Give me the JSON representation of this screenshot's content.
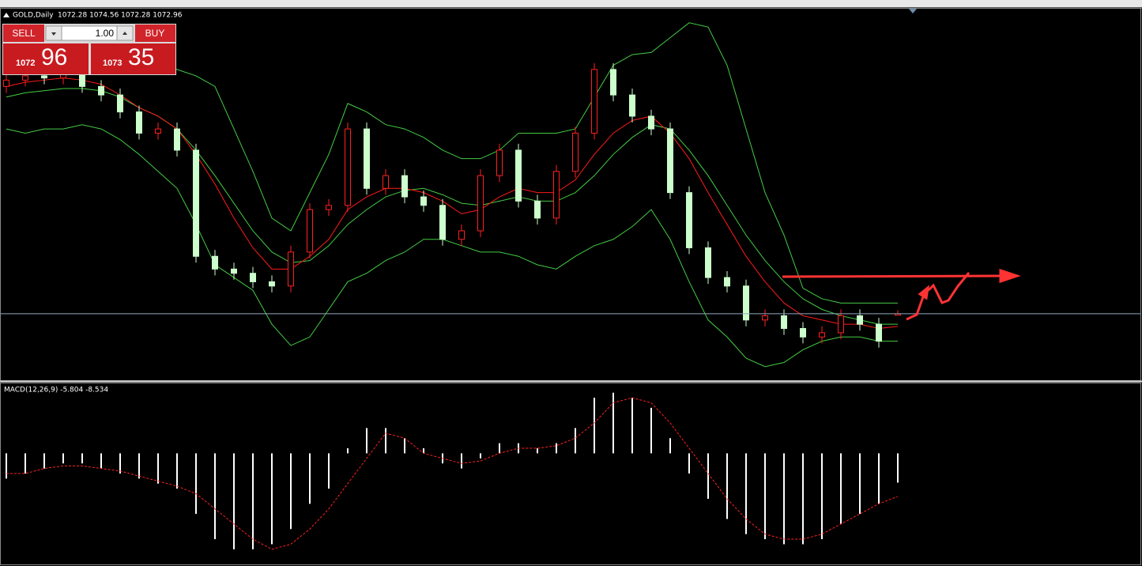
{
  "header": {
    "symbol": "GOLD,Daily",
    "ohlc": "1072.28 1074.56 1072.28 1072.96"
  },
  "trade_panel": {
    "sell": "SELL",
    "buy": "BUY",
    "volume": "1.00",
    "bid_big": "1072",
    "bid_small": "96",
    "ask_big": "1073",
    "ask_small": "35"
  },
  "chart_data": [
    {
      "type": "candlestick",
      "ylim": [
        1042,
        1217
      ],
      "up_color": "#ff2020",
      "down_color": "#ccffcc",
      "band_color": "#44cc44",
      "ma_color": "#ff1a1a",
      "bid_line_color": "#8fa9bf",
      "open": [
        1180,
        1183,
        1185,
        1184,
        1186,
        1180,
        1176,
        1168,
        1158,
        1160,
        1150,
        1100,
        1094,
        1092,
        1088,
        1086,
        1102,
        1122,
        1124,
        1160,
        1132,
        1138,
        1128,
        1124,
        1108,
        1112,
        1138,
        1150,
        1126,
        1118,
        1140,
        1158,
        1188,
        1176,
        1166,
        1160,
        1130,
        1104,
        1090,
        1086,
        1070,
        1072,
        1066,
        1062,
        1064,
        1072,
        1068,
        1072.28
      ],
      "high": [
        1186,
        1188,
        1188,
        1189,
        1189,
        1183,
        1179,
        1171,
        1163,
        1163,
        1153,
        1103,
        1097,
        1095,
        1091,
        1105,
        1125,
        1127,
        1163,
        1163,
        1141,
        1141,
        1131,
        1127,
        1115,
        1141,
        1153,
        1153,
        1129,
        1143,
        1161,
        1191,
        1191,
        1179,
        1169,
        1163,
        1133,
        1107,
        1093,
        1089,
        1075,
        1075,
        1069,
        1067,
        1075,
        1075,
        1071,
        1074.56
      ],
      "low": [
        1177,
        1180,
        1181,
        1181,
        1177,
        1173,
        1165,
        1155,
        1155,
        1147,
        1097,
        1091,
        1089,
        1085,
        1083,
        1083,
        1099,
        1119,
        1121,
        1129,
        1129,
        1125,
        1121,
        1105,
        1105,
        1109,
        1135,
        1123,
        1115,
        1115,
        1137,
        1155,
        1173,
        1163,
        1157,
        1127,
        1101,
        1087,
        1083,
        1067,
        1067,
        1063,
        1059,
        1059,
        1061,
        1065,
        1057,
        1072.28
      ],
      "close": [
        1183,
        1185,
        1184,
        1186,
        1180,
        1176,
        1168,
        1158,
        1160,
        1150,
        1100,
        1094,
        1092,
        1088,
        1086,
        1102,
        1122,
        1124,
        1160,
        1132,
        1138,
        1128,
        1124,
        1108,
        1112,
        1138,
        1150,
        1126,
        1118,
        1140,
        1158,
        1188,
        1176,
        1166,
        1160,
        1130,
        1104,
        1090,
        1086,
        1070,
        1072,
        1066,
        1062,
        1064,
        1072,
        1068,
        1060,
        1072.96
      ],
      "upper": [
        1190,
        1196,
        1197,
        1198,
        1197,
        1196,
        1195,
        1193,
        1190,
        1188,
        1185,
        1180,
        1160,
        1140,
        1118,
        1112,
        1130,
        1148,
        1172,
        1168,
        1162,
        1160,
        1156,
        1150,
        1146,
        1146,
        1150,
        1158,
        1158,
        1158,
        1160,
        1175,
        1190,
        1195,
        1196,
        1203,
        1210,
        1208,
        1190,
        1160,
        1130,
        1110,
        1085,
        1080,
        1078,
        1078,
        1078,
        1078
      ],
      "middle": [
        1175,
        1177,
        1178,
        1179,
        1179,
        1178,
        1175,
        1170,
        1166,
        1160,
        1150,
        1138,
        1125,
        1112,
        1102,
        1097,
        1098,
        1105,
        1115,
        1122,
        1128,
        1131,
        1132,
        1129,
        1125,
        1124,
        1126,
        1128,
        1126,
        1126,
        1130,
        1138,
        1148,
        1156,
        1162,
        1160,
        1150,
        1138,
        1124,
        1110,
        1098,
        1088,
        1080,
        1075,
        1072,
        1070,
        1068,
        1068
      ],
      "lower": [
        1160,
        1158,
        1160,
        1160,
        1162,
        1160,
        1155,
        1148,
        1140,
        1132,
        1115,
        1096,
        1090,
        1084,
        1068,
        1058,
        1062,
        1075,
        1088,
        1092,
        1098,
        1102,
        1108,
        1108,
        1105,
        1102,
        1102,
        1100,
        1096,
        1094,
        1100,
        1105,
        1108,
        1114,
        1122,
        1108,
        1088,
        1070,
        1062,
        1052,
        1048,
        1050,
        1056,
        1060,
        1062,
        1062,
        1060,
        1060
      ],
      "ma": [
        1180,
        1182,
        1183,
        1184,
        1183,
        1181,
        1176,
        1170,
        1166,
        1160,
        1148,
        1134,
        1118,
        1104,
        1094,
        1094,
        1100,
        1108,
        1122,
        1128,
        1132,
        1132,
        1130,
        1126,
        1120,
        1122,
        1128,
        1132,
        1130,
        1130,
        1136,
        1148,
        1158,
        1164,
        1166,
        1158,
        1146,
        1130,
        1115,
        1100,
        1088,
        1078,
        1072,
        1070,
        1068,
        1068,
        1066,
        1067
      ]
    },
    {
      "type": "macd",
      "title": "MACD(12,26,9) -5.804 -8.534",
      "ylim": [
        -22,
        14
      ],
      "histogram_color": "#ffffff",
      "signal_color": "#ff2020",
      "histogram": [
        -5,
        -4,
        -3,
        -2,
        -2,
        -3,
        -4,
        -5,
        -6,
        -7,
        -12,
        -17,
        -19,
        -19,
        -18,
        -15,
        -10,
        -7,
        1,
        5,
        5,
        3,
        1,
        -2,
        -3,
        -1,
        2,
        2,
        1,
        2,
        5,
        11,
        12,
        11,
        9,
        3,
        -4,
        -9,
        -13,
        -16,
        -17,
        -18,
        -18,
        -17,
        -14,
        -12,
        -10,
        -5.804
      ],
      "signal": [
        -4,
        -4,
        -3,
        -2.5,
        -2.5,
        -3,
        -3.5,
        -4.5,
        -5.5,
        -6.5,
        -8,
        -11,
        -14,
        -17,
        -19,
        -18,
        -15,
        -11,
        -6,
        -1,
        4,
        3,
        0,
        -1,
        -2,
        -1.5,
        0,
        1,
        1,
        1.5,
        3,
        6,
        10,
        11,
        10,
        6,
        1,
        -4,
        -9,
        -13,
        -16,
        -17,
        -17,
        -16,
        -14,
        -12,
        -10,
        -8.534
      ]
    }
  ]
}
